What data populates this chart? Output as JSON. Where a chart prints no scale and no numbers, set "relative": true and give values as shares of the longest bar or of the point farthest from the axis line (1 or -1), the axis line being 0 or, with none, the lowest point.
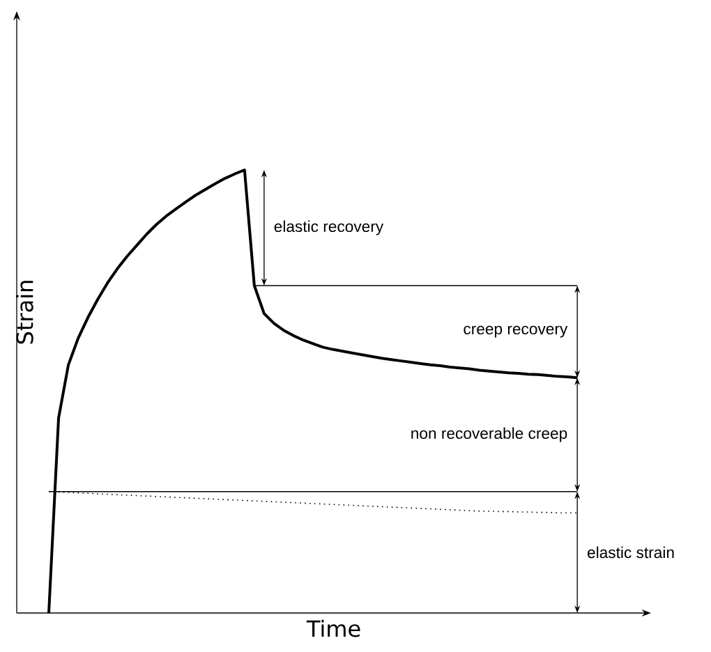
{
  "chart_data": {
    "type": "line",
    "relative": true,
    "xlabel": "Time",
    "ylabel": "Strain",
    "marker": "none",
    "categories": [
      null,
      null,
      null,
      null,
      null,
      null,
      null,
      null,
      null,
      null,
      null,
      null,
      null,
      null,
      null,
      null,
      null,
      null,
      null,
      null,
      null,
      null,
      null,
      null,
      null,
      null,
      null,
      null,
      null,
      null,
      null,
      null,
      null,
      null,
      null,
      null,
      null,
      null,
      null,
      null,
      null,
      null,
      null,
      null,
      null,
      null,
      null,
      null,
      null,
      null,
      null,
      null,
      null,
      null,
      null
    ],
    "series": [
      {
        "color": "#000000",
        "line_style": "solid",
        "values": [
          0,
          0.44,
          0.56,
          0.62,
          0.667,
          0.708,
          0.745,
          0.777,
          0.805,
          0.83,
          0.855,
          0.877,
          0.896,
          0.912,
          0.928,
          0.943,
          0.956,
          0.969,
          0.981,
          0.991,
          1,
          0.739,
          0.676,
          0.654,
          0.638,
          0.626,
          0.616,
          0.608,
          0.6,
          0.595,
          0.591,
          0.587,
          0.583,
          0.579,
          0.575,
          0.572,
          0.569,
          0.566,
          0.563,
          0.56,
          0.558,
          0.555,
          0.553,
          0.551,
          0.548,
          0.546,
          0.544,
          0.542,
          0.541,
          0.539,
          0.538,
          0.536,
          0.534,
          0.533,
          0.531
        ]
      },
      {
        "color": "#000000",
        "line_style": "solid",
        "values": [
          null,
          null,
          null,
          null,
          null,
          null,
          null,
          null,
          null,
          null,
          null,
          null,
          null,
          null,
          null,
          null,
          null,
          null,
          null,
          null,
          null,
          0.739,
          0.739,
          0.739,
          0.739,
          0.739,
          0.739,
          0.739,
          0.739,
          0.739,
          0.739,
          0.739,
          0.739,
          0.739,
          0.739,
          0.739,
          0.739,
          0.739,
          0.739,
          0.739,
          0.739,
          0.739,
          0.739,
          0.739,
          0.739,
          0.739,
          0.739,
          0.739,
          0.739,
          0.739,
          0.739,
          0.739,
          0.739,
          0.739,
          0.739
        ]
      },
      {
        "color": "#000000",
        "line_style": "solid",
        "values": [
          0.274,
          0.274,
          0.274,
          0.274,
          0.274,
          0.274,
          0.274,
          0.274,
          0.274,
          0.274,
          0.274,
          0.274,
          0.274,
          0.274,
          0.274,
          0.274,
          0.274,
          0.274,
          0.274,
          0.274,
          0.274,
          0.274,
          0.274,
          0.274,
          0.274,
          0.274,
          0.274,
          0.274,
          0.274,
          0.274,
          0.274,
          0.274,
          0.274,
          0.274,
          0.274,
          0.274,
          0.274,
          0.274,
          0.274,
          0.274,
          0.274,
          0.274,
          0.274,
          0.274,
          0.274,
          0.274,
          0.274,
          0.274,
          0.274,
          0.274,
          0.274,
          0.274,
          0.274,
          0.274,
          0.274
        ]
      },
      {
        "color": "#000000",
        "line_style": "dotted",
        "values": [
          0.274,
          0.273,
          0.272,
          0.271,
          0.27,
          0.269,
          0.268,
          0.267,
          0.266,
          0.265,
          0.264,
          0.263,
          0.262,
          0.261,
          0.26,
          0.259,
          0.258,
          0.257,
          0.256,
          0.255,
          0.254,
          0.253,
          0.252,
          0.251,
          0.25,
          0.249,
          0.248,
          0.247,
          0.246,
          0.245,
          0.244,
          0.243,
          0.242,
          0.241,
          0.24,
          0.239,
          0.238,
          0.237,
          0.236,
          0.235,
          0.234,
          0.233,
          0.232,
          0.231,
          0.23,
          0.23,
          0.229,
          0.229,
          0.228,
          0.228,
          0.227,
          0.227,
          0.226,
          0.226,
          0.226
        ]
      }
    ],
    "annotations": [
      "elastic recovery",
      "creep recovery",
      "non recoverable creep",
      "elastic strain"
    ]
  }
}
